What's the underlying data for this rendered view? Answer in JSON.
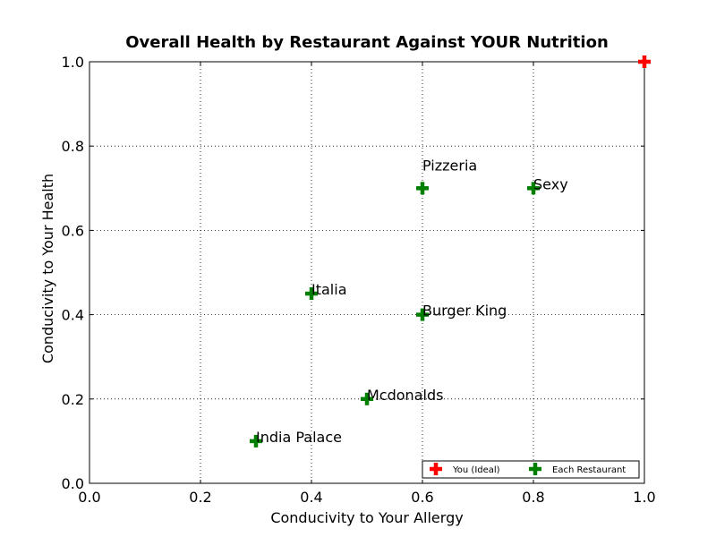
{
  "chart_data": {
    "type": "scatter",
    "title": "Overall Health by Restaurant Against YOUR Nutrition",
    "xlabel": "Conducivity to Your Allergy",
    "ylabel": "Conducivity to Your Health",
    "xlim": [
      0.0,
      1.0
    ],
    "ylim": [
      0.0,
      1.0
    ],
    "xticks": [
      "0.0",
      "0.2",
      "0.4",
      "0.6",
      "0.8",
      "1.0"
    ],
    "yticks": [
      "0.0",
      "0.2",
      "0.4",
      "0.6",
      "0.8",
      "1.0"
    ],
    "grid": true,
    "legend_position": "lower-right",
    "series": [
      {
        "name": "You (Ideal)",
        "color": "#ff0000",
        "marker": "plus",
        "points": [
          {
            "x": 1.0,
            "y": 1.0
          }
        ]
      },
      {
        "name": "Each Restaurant",
        "color": "#007f00",
        "marker": "plus",
        "points": [
          {
            "x": 0.6,
            "y": 0.7,
            "label": "Pizzeria"
          },
          {
            "x": 0.8,
            "y": 0.7,
            "label": "Sexy"
          },
          {
            "x": 0.4,
            "y": 0.45,
            "label": "Italia"
          },
          {
            "x": 0.6,
            "y": 0.4,
            "label": "Burger King"
          },
          {
            "x": 0.5,
            "y": 0.2,
            "label": "Mcdonalds"
          },
          {
            "x": 0.3,
            "y": 0.1,
            "label": "India Palace"
          }
        ]
      }
    ]
  }
}
